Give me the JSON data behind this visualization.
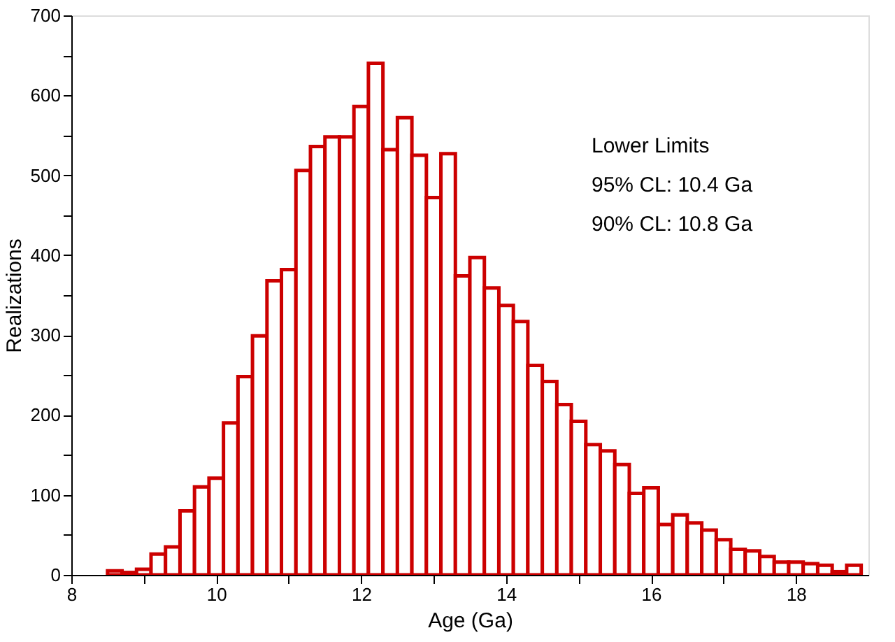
{
  "chart_data": {
    "type": "histogram",
    "xlabel": "Age (Ga)",
    "ylabel": "Realizations",
    "bins": [
      8.5,
      8.7,
      8.9,
      9.1,
      9.3,
      9.5,
      9.7,
      9.9,
      10.1,
      10.3,
      10.5,
      10.7,
      10.9,
      11.1,
      11.3,
      11.5,
      11.7,
      11.9,
      12.1,
      12.3,
      12.5,
      12.7,
      12.9,
      13.1,
      13.3,
      13.5,
      13.7,
      13.9,
      14.1,
      14.3,
      14.5,
      14.7,
      14.9,
      15.1,
      15.3,
      15.5,
      15.7,
      15.9,
      16.1,
      16.3,
      16.5,
      16.7,
      16.9,
      17.1,
      17.3,
      17.5,
      17.7,
      17.9,
      18.1,
      18.3,
      18.5,
      18.7,
      18.9
    ],
    "values": [
      5,
      3,
      7,
      26,
      35,
      80,
      110,
      121,
      190,
      248,
      299,
      368,
      382,
      506,
      536,
      548,
      548,
      586,
      640,
      532,
      572,
      525,
      472,
      527,
      374,
      397,
      359,
      337,
      317,
      262,
      242,
      213,
      192,
      163,
      155,
      138,
      102,
      109,
      63,
      75,
      65,
      56,
      44,
      32,
      30,
      23,
      16,
      16,
      14,
      12,
      4,
      12
    ],
    "color": "#cc0000",
    "xlim": [
      8,
      19
    ],
    "xticks": [
      8,
      {
        "value": 9,
        "label": null
      },
      10,
      {
        "value": 11,
        "label": null
      },
      12,
      {
        "value": 13,
        "label": null
      },
      14,
      {
        "value": 15,
        "label": null
      },
      16,
      {
        "value": 17,
        "label": null
      },
      18
    ],
    "ylim": [
      0,
      700
    ],
    "yticks": [
      0,
      {
        "value": 50,
        "label": null
      },
      100,
      {
        "value": 150,
        "label": null
      },
      200,
      {
        "value": 250,
        "label": null
      },
      300,
      {
        "value": 350,
        "label": null
      },
      400,
      {
        "value": 450,
        "label": null
      },
      500,
      {
        "value": 550,
        "label": null
      },
      600,
      {
        "value": 650,
        "label": null
      },
      700
    ],
    "annotations": [
      "Lower Limits",
      "95% CL: 10.4 Ga",
      "90% CL: 10.8 Ga"
    ],
    "grid": false
  }
}
